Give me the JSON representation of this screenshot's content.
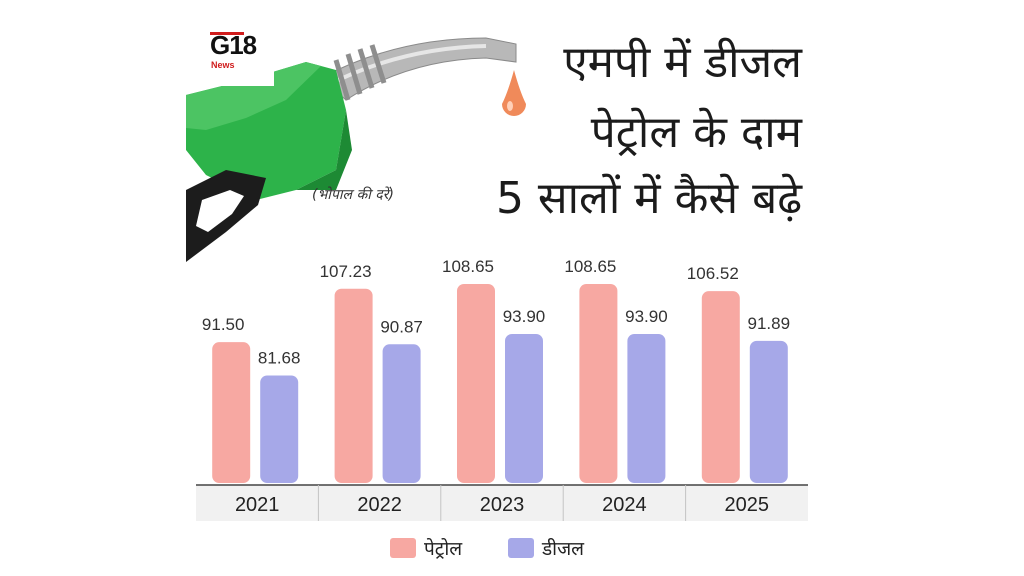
{
  "logo": {
    "text": "G18",
    "subtext": "News"
  },
  "title_lines": [
    "एमपी में डीजल",
    "पेट्रोल के दाम",
    "5 सालों में कैसे बढ़े"
  ],
  "subtitle": "(भोपाल की दरें)",
  "colors": {
    "petrol": "#f7a8a2",
    "diesel": "#a6a8e8",
    "nozzle": "#2db34a",
    "nozzle_dark": "#1d8a34",
    "handle": "#1c1c1c"
  },
  "icons": [
    "fuel-nozzle-icon",
    "fuel-drop-icon"
  ],
  "chart_data": {
    "type": "bar",
    "categories": [
      "2021",
      "2022",
      "2023",
      "2024",
      "2025"
    ],
    "series": [
      {
        "name": "पेट्रोल",
        "values": [
          91.5,
          107.23,
          108.65,
          108.65,
          106.52
        ],
        "labels": [
          "91.50",
          "107.23",
          "108.65",
          "108.65",
          "106.52"
        ]
      },
      {
        "name": "डीजल",
        "values": [
          81.68,
          90.87,
          93.9,
          93.9,
          91.89
        ],
        "labels": [
          "81.68",
          "90.87",
          "93.90",
          "93.90",
          "91.89"
        ]
      }
    ],
    "title": "एमपी में डीजल पेट्रोल के दाम 5 सालों में कैसे बढ़े",
    "subtitle": "(भोपाल की दरें)",
    "xlabel": "",
    "ylabel": "",
    "legend": "bottom-center",
    "grid": false
  }
}
